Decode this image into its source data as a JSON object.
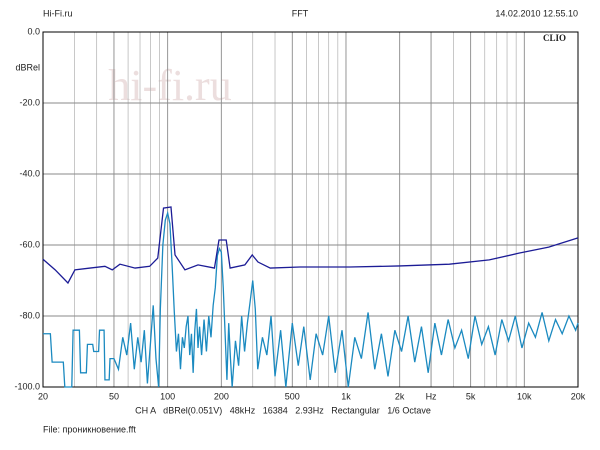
{
  "chart_data": {
    "type": "line",
    "header_left": "Hi-Fi.ru",
    "title": "FFT",
    "header_right": "14.02.2010 12.55.10",
    "brand": "CLIO",
    "watermark": "hi-fi.ru",
    "ylabel": "dBRel",
    "footer": "CH A   dBRel(0.051V)   48kHz   16384   2.93Hz   Rectangular   1/6 Octave",
    "file": "File: проникновение.fft",
    "xscale": "log",
    "grid": true,
    "xlim": [
      20,
      20000
    ],
    "ylim": [
      -100,
      0
    ],
    "xticks": [
      20,
      50,
      100,
      200,
      500,
      {
        "value": 1000,
        "label": "1k"
      },
      {
        "value": 2000,
        "label": "2k"
      },
      {
        "value": 3000,
        "label": "Hz"
      },
      {
        "value": 5000,
        "label": "5k"
      },
      {
        "value": 10000,
        "label": "10k"
      },
      {
        "value": 20000,
        "label": "20k"
      }
    ],
    "xminor": [
      30,
      40,
      60,
      70,
      80,
      90,
      300,
      400,
      600,
      700,
      800,
      900,
      3000,
      4000,
      6000,
      7000,
      8000,
      9000
    ],
    "yticks": [
      {
        "value": 0,
        "label": "0.0"
      },
      {
        "value": -20,
        "label": "-20.0"
      },
      {
        "value": -40,
        "label": "-40.0"
      },
      {
        "value": -60,
        "label": "-60.0"
      },
      {
        "value": -80,
        "label": "-80.0"
      },
      {
        "value": -100,
        "label": "-100.0"
      }
    ],
    "series": [
      {
        "color": "#1b8ac0",
        "x": [
          20,
          22,
          22.5,
          26,
          26.5,
          29,
          29.5,
          32,
          32.5,
          35,
          35.5,
          38,
          38.5,
          41,
          41.5,
          44,
          44.5,
          47,
          47.5,
          50,
          53,
          56,
          59,
          62,
          65,
          68,
          71,
          74,
          77,
          80,
          83,
          86,
          89,
          91,
          94,
          97,
          100,
          103,
          106,
          109,
          112,
          115,
          118,
          121,
          124,
          127,
          130,
          133,
          136,
          139,
          142,
          145,
          148,
          151,
          155,
          160,
          165,
          170,
          175,
          180,
          185,
          190,
          195,
          200,
          205,
          210,
          215,
          220,
          225,
          230,
          240,
          250,
          260,
          270,
          280,
          290,
          300,
          310,
          320,
          340,
          360,
          380,
          400,
          430,
          460,
          500,
          540,
          580,
          630,
          680,
          740,
          800,
          870,
          950,
          1030,
          1120,
          1220,
          1330,
          1450,
          1580,
          1720,
          1880,
          2050,
          2230,
          2430,
          2650,
          2890,
          3150,
          3430,
          3740,
          4080,
          4450,
          4850,
          5290,
          5770,
          6290,
          6860,
          7480,
          8160,
          8900,
          9700,
          10580,
          11540,
          12580,
          13720,
          14960,
          16310,
          17790,
          19400,
          20000
        ],
        "values": [
          -85,
          -85,
          -93,
          -93,
          -100,
          -100,
          -84,
          -84,
          -96,
          -96,
          -88,
          -88,
          -90,
          -90,
          -84,
          -84,
          -98,
          -98,
          -92,
          -92,
          -95,
          -86,
          -91,
          -82,
          -95,
          -86,
          -93,
          -84,
          -99,
          -88,
          -77,
          -92,
          -100,
          -78,
          -60,
          -53,
          -51,
          -54,
          -66,
          -79,
          -90,
          -85,
          -95,
          -86,
          -89,
          -83,
          -80,
          -91,
          -85,
          -96,
          -84,
          -78,
          -89,
          -83,
          -91,
          -81,
          -90,
          -80,
          -86,
          -77,
          -72,
          -63,
          -61,
          -62,
          -72,
          -85,
          -98,
          -82,
          -92,
          -100,
          -87,
          -94,
          -80,
          -90,
          -82,
          -76,
          -70,
          -78,
          -95,
          -86,
          -91,
          -80,
          -97,
          -84,
          -100,
          -82,
          -94,
          -83,
          -98,
          -85,
          -91,
          -80,
          -96,
          -84,
          -100,
          -86,
          -92,
          -79,
          -95,
          -85,
          -97,
          -84,
          -90,
          -80,
          -93,
          -83,
          -96,
          -82,
          -91,
          -81,
          -89,
          -84,
          -92,
          -80,
          -88,
          -83,
          -91,
          -81,
          -87,
          -80,
          -89,
          -82,
          -86,
          -79,
          -87,
          -81,
          -85,
          -80,
          -84,
          -82
        ]
      },
      {
        "color": "#1c1c96",
        "x": [
          20,
          23.4,
          27.6,
          30.2,
          36.7,
          44.5,
          48.9,
          54,
          65.7,
          79.3,
          88,
          94.8,
          104.4,
          110,
          125,
          148,
          183,
          194,
          213,
          224,
          271,
          298,
          321,
          376,
          552,
          1050,
          2000,
          3800,
          6360,
          9330,
          13700,
          20000
        ],
        "values": [
          -64,
          -67,
          -70.7,
          -67,
          -66.5,
          -66,
          -67,
          -65.4,
          -66.5,
          -66,
          -63.7,
          -49.6,
          -49.3,
          -62.8,
          -67,
          -65.6,
          -66.5,
          -58.6,
          -58.6,
          -66.5,
          -65.6,
          -62.8,
          -64.8,
          -66.5,
          -66.2,
          -66.2,
          -65.9,
          -65.4,
          -64.2,
          -62.3,
          -60.6,
          -58
        ]
      }
    ]
  }
}
